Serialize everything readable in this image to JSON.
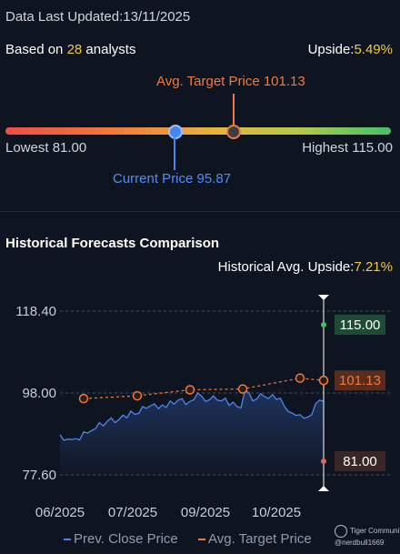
{
  "header": {
    "updated_label": "Data Last Updated:",
    "updated_date": "13/11/2025",
    "based_prefix": "Based on ",
    "analyst_count": "28",
    "based_suffix": " analysts",
    "upside_label": "Upside:",
    "upside_value": "5.49%"
  },
  "range": {
    "avg_target_label": "Avg. Target Price 101.13",
    "lowest_label": "Lowest 81.00",
    "highest_label": "Highest 115.00",
    "current_label": "Current Price 95.87",
    "lowest": 81.0,
    "highest": 115.0,
    "current": 95.87,
    "avg_target": 101.13
  },
  "historical": {
    "title": "Historical Forecasts Comparison",
    "upside_label": "Historical Avg. Upside:",
    "upside_value": "7.21%"
  },
  "chart_data": {
    "type": "line",
    "x_ticks": [
      "06/2025",
      "07/2025",
      "09/2025",
      "10/2025"
    ],
    "y_ticks": [
      "118.40",
      "98.00",
      "77.60"
    ],
    "ylim": [
      77.6,
      118.4
    ],
    "grid": true,
    "series": [
      {
        "name": "Prev. Close Price",
        "color": "#4a86f0",
        "values": [
          87.6,
          86.2,
          86.5,
          86.4,
          86.6,
          86.3,
          88.3,
          88.0,
          88.6,
          89.1,
          90.6,
          89.8,
          90.9,
          91.8,
          90.6,
          91.4,
          92.5,
          91.8,
          93.5,
          92.7,
          92.9,
          94.6,
          94.2,
          94.8,
          95.3,
          94.1,
          95.0,
          94.4,
          96.0,
          95.2,
          96.2,
          96.6,
          95.1,
          95.9,
          96.3,
          98.0,
          97.2,
          95.9,
          96.3,
          97.3,
          96.2,
          96.0,
          96.7,
          94.9,
          95.7,
          94.6,
          94.3,
          98.7,
          98.1,
          96.0,
          96.5,
          97.8,
          97.1,
          96.6,
          97.6,
          96.4,
          96.7,
          94.7,
          93.4,
          93.0,
          92.4,
          92.6,
          91.7,
          92.0,
          92.6,
          95.4,
          96.2,
          95.87
        ]
      },
      {
        "name": "Avg. Target Price",
        "color": "#f07a3d",
        "values": [
          96.6,
          97.3,
          98.8,
          99.0,
          101.7,
          101.13
        ]
      }
    ],
    "current_high": "115.00",
    "current_avg": "101.13",
    "current_low": "81.00"
  },
  "legend": {
    "close_label": "Prev. Close Price",
    "target_label": "Avg. Target Price"
  },
  "watermark": {
    "brand": "Tiger Community",
    "user": "@nerdbull1669"
  }
}
